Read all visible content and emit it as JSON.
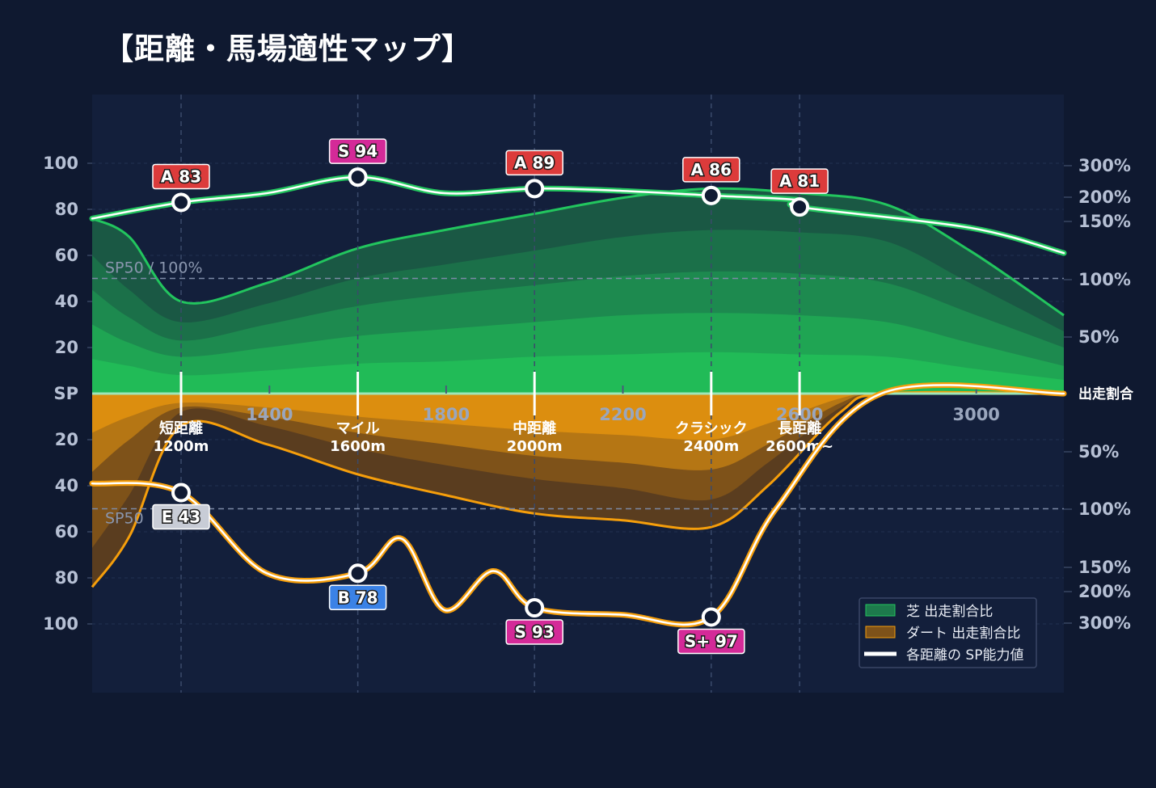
{
  "title": "【距離・馬場適性マップ】",
  "colors": {
    "background": "#0f1930",
    "plot_bg": "#131f3b",
    "turf": "#22c55e",
    "dirt": "#f59e0b",
    "grade_A": "#dc3b3b",
    "grade_S": "#d42a98",
    "grade_B": "#3b82e6",
    "grade_E": "#c8ccd6"
  },
  "chart_data": {
    "type": "area",
    "x_ticks": [
      "1400",
      "1800",
      "2200",
      "2600",
      "3000"
    ],
    "x_range": [
      1000,
      3200
    ],
    "y_ticks": [
      "100",
      "80",
      "60",
      "40",
      "20",
      "SP",
      "20",
      "40",
      "60",
      "80",
      "100"
    ],
    "y_center_label": "SP",
    "y_range": [
      0,
      100
    ],
    "right_ticks_top": [
      "300%",
      "200%",
      "150%",
      "100%",
      "50%"
    ],
    "right_ticks_bottom": [
      "50%",
      "100%",
      "150%",
      "200%",
      "300%"
    ],
    "right_center_label": "出走割合",
    "reference_line_label": "SP50 / 100%",
    "reference_line_label_dirt": "SP50",
    "distance_categories": [
      {
        "name": "短距離",
        "dist": "1200m",
        "x": 1200
      },
      {
        "name": "マイル",
        "dist": "1600m",
        "x": 1600
      },
      {
        "name": "中距離",
        "dist": "2000m",
        "x": 2000
      },
      {
        "name": "クラシック",
        "dist": "2400m",
        "x": 2400
      },
      {
        "name": "長距離",
        "dist": "2600m~",
        "x": 2600
      }
    ],
    "turf_sp": [
      {
        "x": 1200,
        "value": 83,
        "label": "A 83",
        "grade": "A"
      },
      {
        "x": 1600,
        "value": 94,
        "label": "S 94",
        "grade": "S"
      },
      {
        "x": 2000,
        "value": 89,
        "label": "A 89",
        "grade": "A"
      },
      {
        "x": 2400,
        "value": 86,
        "label": "A 86",
        "grade": "A"
      },
      {
        "x": 2600,
        "value": 81,
        "label": "A 81",
        "grade": "A"
      }
    ],
    "dirt_sp": [
      {
        "x": 1200,
        "value": 43,
        "label": "E 43",
        "grade": "E"
      },
      {
        "x": 1600,
        "value": 78,
        "label": "B 78",
        "grade": "B"
      },
      {
        "x": 2000,
        "value": 93,
        "label": "S 93",
        "grade": "S"
      },
      {
        "x": 2400,
        "value": 97,
        "label": "S+ 97",
        "grade": "S+"
      }
    ],
    "legend": [
      {
        "label": "芝 出走割合比",
        "kind": "turf"
      },
      {
        "label": "ダート 出走割合比",
        "kind": "dirt"
      },
      {
        "label": "各距離の SP能力値",
        "kind": "sp"
      }
    ],
    "grid": true
  }
}
